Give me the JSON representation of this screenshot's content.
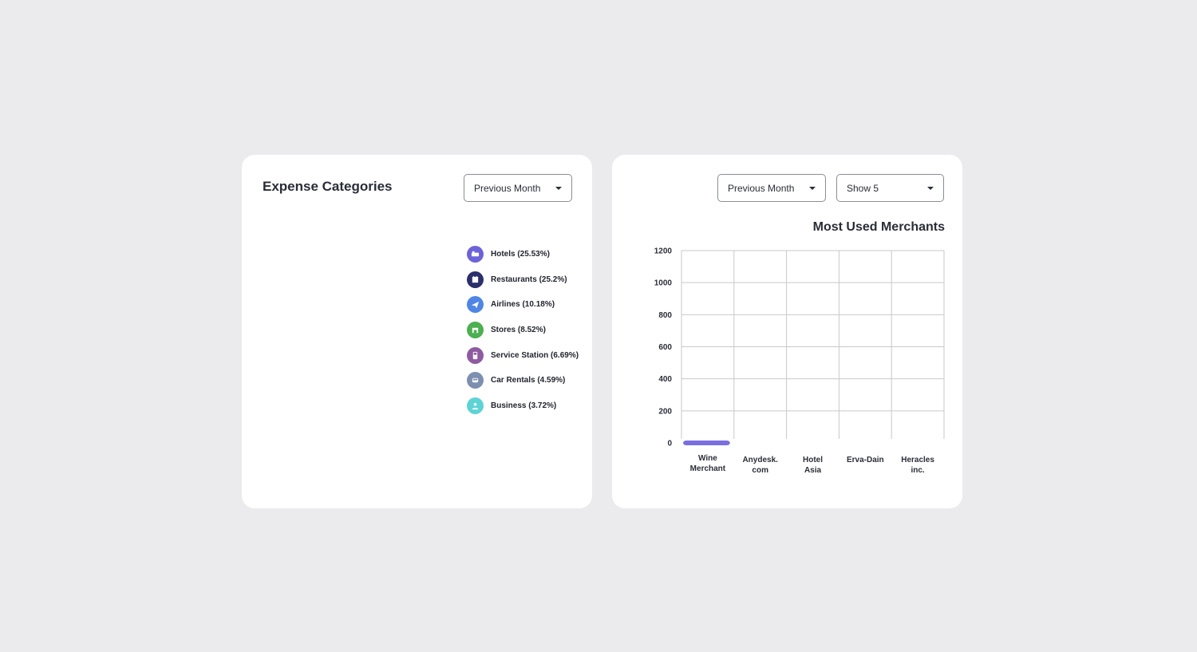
{
  "expense_card": {
    "title": "Expense Categories",
    "period_dropdown": "Previous Month",
    "legend": [
      {
        "label": "Hotels (25.53%)",
        "color": "#6c63d8",
        "icon": "bed-icon"
      },
      {
        "label": "Restaurants (25.2%)",
        "color": "#2b2f6b",
        "icon": "utensils-icon"
      },
      {
        "label": "Airlines (10.18%)",
        "color": "#4f86e6",
        "icon": "plane-icon"
      },
      {
        "label": "Stores (8.52%)",
        "color": "#4caf50",
        "icon": "store-icon"
      },
      {
        "label": "Service Station (6.69%)",
        "color": "#8e5aa0",
        "icon": "fuel-icon"
      },
      {
        "label": "Car Rentals (4.59%)",
        "color": "#7d8fb0",
        "icon": "car-icon"
      },
      {
        "label": "Business (3.72%)",
        "color": "#5ed3d6",
        "icon": "person-icon"
      }
    ]
  },
  "merchants_card": {
    "period_dropdown": "Previous Month",
    "count_dropdown": "Show 5"
  },
  "chart_data": {
    "type": "bar",
    "title": "Most Used Merchants",
    "categories": [
      [
        "Wine",
        "Merchant"
      ],
      [
        "Anydesk.",
        "com"
      ],
      [
        "Hotel",
        "Asia"
      ],
      [
        "Erva-Dain"
      ],
      [
        "Heracles",
        "inc."
      ]
    ],
    "values": [
      0,
      0,
      0,
      0,
      0
    ],
    "ylim": [
      0,
      1200
    ],
    "yticks": [
      0,
      200,
      400,
      600,
      800,
      1000,
      1200
    ],
    "grid": true,
    "bar_color": "#7b6fe0",
    "xlabel": "",
    "ylabel": ""
  }
}
